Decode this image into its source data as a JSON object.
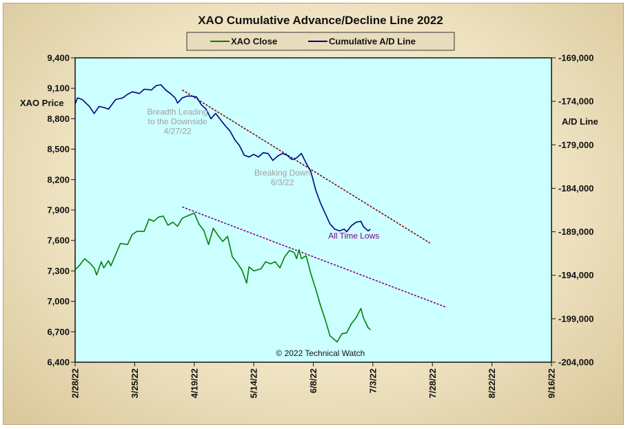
{
  "chart_data": {
    "type": "line",
    "title": "XAO Cumulative Advance/Decline Line 2022",
    "legend": {
      "placement": "top-center",
      "entries": [
        {
          "name": "XAO Close",
          "color": "#008000"
        },
        {
          "name": "Cumulative A/D Line",
          "color": "#000080"
        }
      ]
    },
    "y_left": {
      "label": "XAO Price",
      "range": [
        6400,
        9400
      ],
      "ticks": [
        6400,
        6700,
        7000,
        7300,
        7600,
        7900,
        8200,
        8500,
        8800,
        9100,
        9400
      ],
      "tick_labels": [
        "6,400",
        "6,700",
        "7,000",
        "7,300",
        "7,600",
        "7,900",
        "8,200",
        "8,500",
        "8,800",
        "9,100",
        "9,400"
      ]
    },
    "y_right": {
      "label": "A/D Line",
      "range": [
        -204000,
        -169000
      ],
      "ticks": [
        -204000,
        -199000,
        -194000,
        -189000,
        -184000,
        -179000,
        -174000,
        -169000
      ],
      "tick_labels": [
        "-204,000",
        "-199,000",
        "-194,000",
        "-189,000",
        "-184,000",
        "-179,000",
        "-174,000",
        "-169,000"
      ]
    },
    "x_axis": {
      "range": [
        "2022-02-28",
        "2022-09-16"
      ],
      "ticks": [
        "2022-02-28",
        "2022-03-25",
        "2022-04-19",
        "2022-05-14",
        "2022-06-08",
        "2022-07-03",
        "2022-07-28",
        "2022-08-22",
        "2022-09-16"
      ],
      "tick_labels": [
        "2/28/22",
        "3/25/22",
        "4/19/22",
        "5/14/22",
        "6/8/22",
        "7/3/22",
        "7/28/22",
        "8/22/22",
        "9/16/22"
      ]
    },
    "plot_background": "#ccffff",
    "series": [
      {
        "name": "XAO Close",
        "axis": "left",
        "color": "#008000",
        "points": [
          [
            "2022-02-28",
            7310
          ],
          [
            "2022-03-02",
            7360
          ],
          [
            "2022-03-04",
            7420
          ],
          [
            "2022-03-06",
            7380
          ],
          [
            "2022-03-08",
            7330
          ],
          [
            "2022-03-09",
            7260
          ],
          [
            "2022-03-11",
            7390
          ],
          [
            "2022-03-12",
            7330
          ],
          [
            "2022-03-14",
            7400
          ],
          [
            "2022-03-15",
            7350
          ],
          [
            "2022-03-17",
            7460
          ],
          [
            "2022-03-19",
            7570
          ],
          [
            "2022-03-22",
            7560
          ],
          [
            "2022-03-24",
            7660
          ],
          [
            "2022-03-26",
            7690
          ],
          [
            "2022-03-29",
            7690
          ],
          [
            "2022-03-31",
            7810
          ],
          [
            "2022-04-02",
            7790
          ],
          [
            "2022-04-04",
            7830
          ],
          [
            "2022-04-06",
            7840
          ],
          [
            "2022-04-08",
            7750
          ],
          [
            "2022-04-10",
            7780
          ],
          [
            "2022-04-12",
            7740
          ],
          [
            "2022-04-14",
            7820
          ],
          [
            "2022-04-17",
            7850
          ],
          [
            "2022-04-19",
            7870
          ],
          [
            "2022-04-21",
            7760
          ],
          [
            "2022-04-23",
            7700
          ],
          [
            "2022-04-25",
            7560
          ],
          [
            "2022-04-27",
            7720
          ],
          [
            "2022-04-29",
            7650
          ],
          [
            "2022-05-01",
            7590
          ],
          [
            "2022-05-03",
            7640
          ],
          [
            "2022-05-05",
            7440
          ],
          [
            "2022-05-07",
            7380
          ],
          [
            "2022-05-09",
            7310
          ],
          [
            "2022-05-11",
            7180
          ],
          [
            "2022-05-12",
            7340
          ],
          [
            "2022-05-14",
            7300
          ],
          [
            "2022-05-17",
            7320
          ],
          [
            "2022-05-19",
            7390
          ],
          [
            "2022-05-21",
            7370
          ],
          [
            "2022-05-23",
            7390
          ],
          [
            "2022-05-25",
            7330
          ],
          [
            "2022-05-27",
            7440
          ],
          [
            "2022-05-29",
            7500
          ],
          [
            "2022-05-31",
            7480
          ],
          [
            "2022-06-01",
            7420
          ],
          [
            "2022-06-02",
            7510
          ],
          [
            "2022-06-03",
            7420
          ],
          [
            "2022-06-05",
            7450
          ],
          [
            "2022-06-07",
            7270
          ],
          [
            "2022-06-09",
            7120
          ],
          [
            "2022-06-11",
            6960
          ],
          [
            "2022-06-13",
            6820
          ],
          [
            "2022-06-15",
            6660
          ],
          [
            "2022-06-17",
            6620
          ],
          [
            "2022-06-18",
            6600
          ],
          [
            "2022-06-20",
            6680
          ],
          [
            "2022-06-22",
            6690
          ],
          [
            "2022-06-24",
            6780
          ],
          [
            "2022-06-26",
            6840
          ],
          [
            "2022-06-28",
            6930
          ],
          [
            "2022-06-29",
            6840
          ],
          [
            "2022-07-01",
            6740
          ],
          [
            "2022-07-02",
            6720
          ]
        ]
      },
      {
        "name": "Cumulative A/D Line",
        "axis": "right",
        "color": "#000080",
        "points": [
          [
            "2022-02-28",
            -174300
          ],
          [
            "2022-03-01",
            -173600
          ],
          [
            "2022-03-03",
            -173800
          ],
          [
            "2022-03-06",
            -174600
          ],
          [
            "2022-03-08",
            -175400
          ],
          [
            "2022-03-10",
            -174600
          ],
          [
            "2022-03-12",
            -174700
          ],
          [
            "2022-03-14",
            -174900
          ],
          [
            "2022-03-17",
            -173800
          ],
          [
            "2022-03-20",
            -173600
          ],
          [
            "2022-03-22",
            -173200
          ],
          [
            "2022-03-24",
            -172900
          ],
          [
            "2022-03-27",
            -173100
          ],
          [
            "2022-03-29",
            -172600
          ],
          [
            "2022-04-01",
            -172700
          ],
          [
            "2022-04-03",
            -172200
          ],
          [
            "2022-04-05",
            -172100
          ],
          [
            "2022-04-07",
            -172700
          ],
          [
            "2022-04-09",
            -173100
          ],
          [
            "2022-04-11",
            -173600
          ],
          [
            "2022-04-12",
            -174200
          ],
          [
            "2022-04-14",
            -173600
          ],
          [
            "2022-04-16",
            -173400
          ],
          [
            "2022-04-18",
            -173400
          ],
          [
            "2022-04-20",
            -173500
          ],
          [
            "2022-04-22",
            -174400
          ],
          [
            "2022-04-24",
            -174900
          ],
          [
            "2022-04-26",
            -176000
          ],
          [
            "2022-04-28",
            -175400
          ],
          [
            "2022-04-30",
            -176100
          ],
          [
            "2022-05-02",
            -176800
          ],
          [
            "2022-05-04",
            -177400
          ],
          [
            "2022-05-06",
            -178400
          ],
          [
            "2022-05-08",
            -179100
          ],
          [
            "2022-05-10",
            -180200
          ],
          [
            "2022-05-12",
            -180400
          ],
          [
            "2022-05-14",
            -180100
          ],
          [
            "2022-05-16",
            -180400
          ],
          [
            "2022-05-18",
            -179900
          ],
          [
            "2022-05-20",
            -180000
          ],
          [
            "2022-05-22",
            -180800
          ],
          [
            "2022-05-24",
            -180300
          ],
          [
            "2022-05-26",
            -180000
          ],
          [
            "2022-05-28",
            -180200
          ],
          [
            "2022-05-30",
            -180700
          ],
          [
            "2022-06-01",
            -180500
          ],
          [
            "2022-06-03",
            -180000
          ],
          [
            "2022-06-05",
            -181100
          ],
          [
            "2022-06-07",
            -182100
          ],
          [
            "2022-06-09",
            -184200
          ],
          [
            "2022-06-11",
            -185700
          ],
          [
            "2022-06-13",
            -186900
          ],
          [
            "2022-06-15",
            -188100
          ],
          [
            "2022-06-17",
            -188700
          ],
          [
            "2022-06-19",
            -188900
          ],
          [
            "2022-06-21",
            -188700
          ],
          [
            "2022-06-22",
            -189000
          ],
          [
            "2022-06-24",
            -188300
          ],
          [
            "2022-06-26",
            -187900
          ],
          [
            "2022-06-28",
            -187800
          ],
          [
            "2022-06-29",
            -188400
          ],
          [
            "2022-07-01",
            -188900
          ],
          [
            "2022-07-02",
            -188700
          ]
        ]
      }
    ],
    "trendlines": [
      {
        "axis": "right",
        "color": "#800000",
        "dash": true,
        "from": [
          "2022-04-14",
          -172700
        ],
        "to": [
          "2022-07-27",
          -190300
        ]
      },
      {
        "axis": "left",
        "color": "#800080",
        "dash": true,
        "from": [
          "2022-04-14",
          7930
        ],
        "to": [
          "2022-08-03",
          6940
        ]
      }
    ],
    "annotations": [
      {
        "text_lines": [
          "Breadth Leading",
          "to the Downside",
          "4/27/22"
        ],
        "x": "2022-04-12",
        "y_axis": "left",
        "y": 8840,
        "color": "#a0a0a0"
      },
      {
        "text_lines": [
          "Breaking  Down",
          "6/3/22"
        ],
        "x": "2022-05-26",
        "y_axis": "left",
        "y": 8240,
        "color": "#a0a0a0"
      },
      {
        "text_lines": [
          "All Time Lows"
        ],
        "x": "2022-06-25",
        "y_axis": "left",
        "y": 7620,
        "color": "#800080"
      },
      {
        "text_lines": [
          "© 2022 Technical  Watch"
        ],
        "x": "2022-06-11",
        "y_axis": "left",
        "y": 6460,
        "color": "#111111"
      }
    ]
  }
}
